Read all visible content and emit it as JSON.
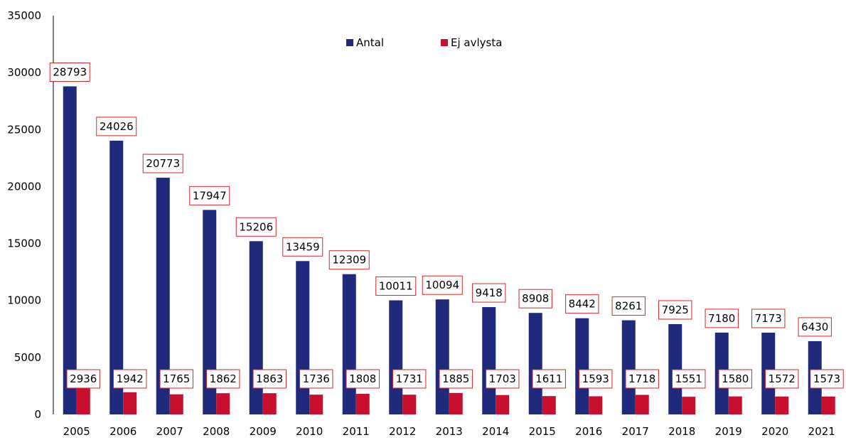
{
  "chart_data": {
    "type": "bar",
    "title": "",
    "xlabel": "",
    "ylabel": "",
    "categories": [
      "2005",
      "2006",
      "2007",
      "2008",
      "2009",
      "2010",
      "2011",
      "2012",
      "2013",
      "2014",
      "2015",
      "2016",
      "2017",
      "2018",
      "2019",
      "2020",
      "2021"
    ],
    "series": [
      {
        "name": "Antal",
        "color": "#1F2A7C",
        "values": [
          28793,
          24026,
          20773,
          17947,
          15206,
          13459,
          12309,
          10011,
          10094,
          9418,
          8908,
          8442,
          8261,
          7925,
          7180,
          7173,
          6430
        ]
      },
      {
        "name": "Ej avlysta",
        "color": "#C8102E",
        "values": [
          2936,
          1942,
          1765,
          1862,
          1863,
          1736,
          1808,
          1731,
          1885,
          1703,
          1611,
          1593,
          1718,
          1551,
          1580,
          1572,
          1573
        ]
      }
    ],
    "ylim": [
      0,
      35000
    ],
    "yticks": [
      0,
      5000,
      10000,
      15000,
      20000,
      25000,
      30000,
      35000
    ],
    "grid": false,
    "legend_position": "top-center",
    "data_label_border_color": "#D62728"
  }
}
